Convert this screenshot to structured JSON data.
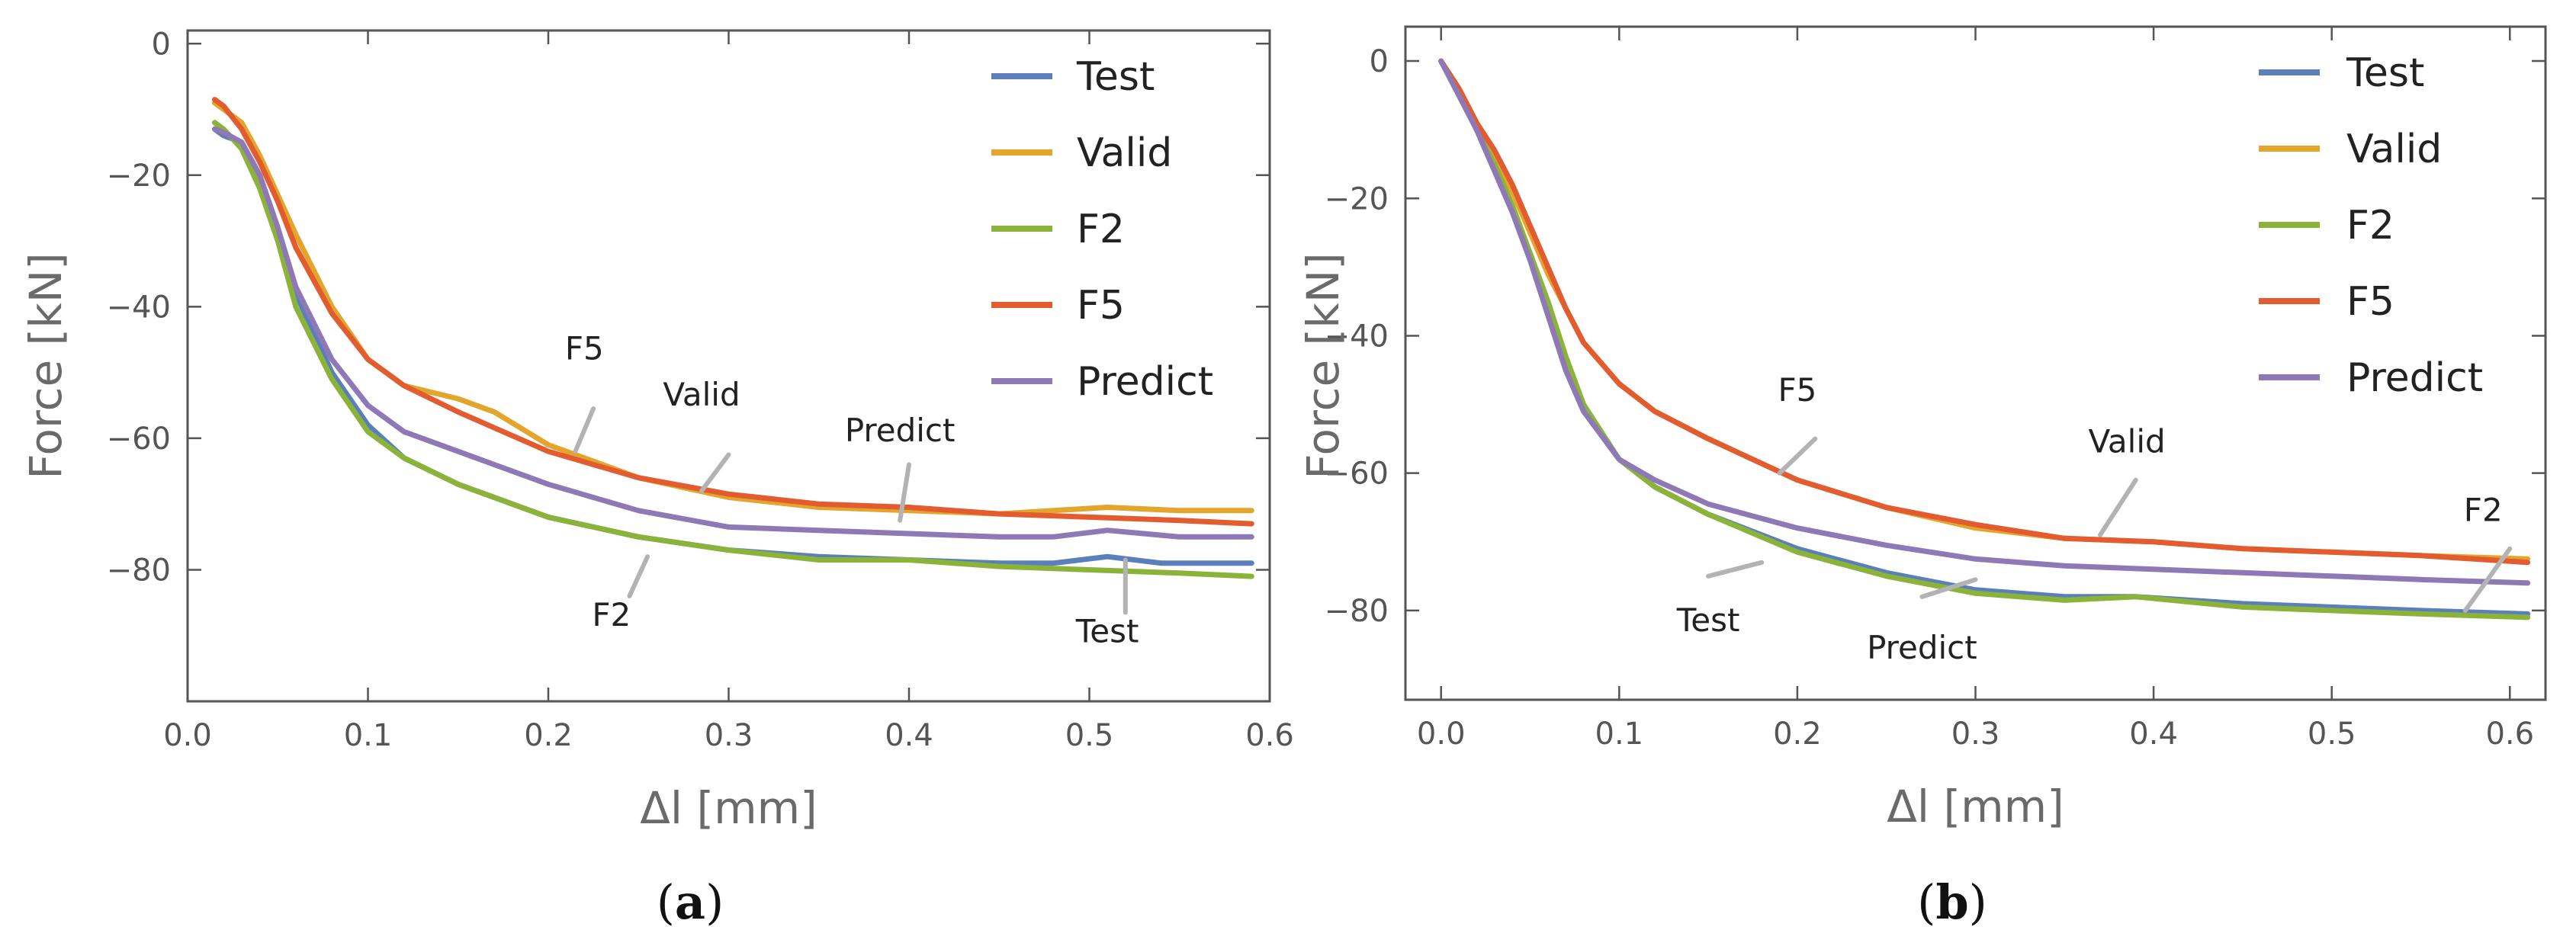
{
  "colors": {
    "Test": "#5b7fbd",
    "Valid": "#e3a52c",
    "F2": "#8bb33a",
    "F5": "#e25c2f",
    "Predict": "#8e79b6"
  },
  "chart_data": [
    {
      "type": "line",
      "panel_label": "(a)",
      "xlabel": "Δl [mm]",
      "ylabel": "Force [kN]",
      "xlim": [
        0,
        0.6
      ],
      "ylim": [
        -100,
        2
      ],
      "xticks": [
        "0.0",
        "0.1",
        "0.2",
        "0.3",
        "0.4",
        "0.5",
        "0.6"
      ],
      "yticks": [
        "0",
        "−20",
        "−40",
        "−60",
        "−80"
      ],
      "legend_position": "top-right",
      "series": [
        {
          "name": "Test",
          "x": [
            0.015,
            0.02,
            0.03,
            0.04,
            0.05,
            0.06,
            0.08,
            0.1,
            0.12,
            0.15,
            0.2,
            0.25,
            0.3,
            0.35,
            0.4,
            0.45,
            0.48,
            0.51,
            0.54,
            0.59
          ],
          "y": [
            -13,
            -14,
            -15,
            -20,
            -28,
            -38,
            -50,
            -58,
            -63,
            -67,
            -72,
            -75,
            -77,
            -78,
            -78.5,
            -79,
            -79,
            -78,
            -79,
            -79
          ]
        },
        {
          "name": "Valid",
          "x": [
            0.015,
            0.02,
            0.03,
            0.04,
            0.05,
            0.06,
            0.08,
            0.1,
            0.12,
            0.15,
            0.17,
            0.2,
            0.25,
            0.3,
            0.35,
            0.4,
            0.45,
            0.51,
            0.55,
            0.59
          ],
          "y": [
            -9,
            -10,
            -12,
            -17,
            -23,
            -29,
            -40,
            -48,
            -52,
            -54,
            -56,
            -61,
            -66,
            -69,
            -70.5,
            -71,
            -71.5,
            -70.5,
            -71,
            -71
          ]
        },
        {
          "name": "F2",
          "x": [
            0.015,
            0.02,
            0.03,
            0.04,
            0.05,
            0.06,
            0.08,
            0.1,
            0.12,
            0.15,
            0.2,
            0.25,
            0.3,
            0.35,
            0.4,
            0.45,
            0.5,
            0.55,
            0.59
          ],
          "y": [
            -12,
            -13,
            -16,
            -22,
            -30,
            -40,
            -51,
            -59,
            -63,
            -67,
            -72,
            -75,
            -77,
            -78.5,
            -78.5,
            -79.5,
            -80,
            -80.5,
            -81
          ]
        },
        {
          "name": "F5",
          "x": [
            0.015,
            0.02,
            0.03,
            0.04,
            0.05,
            0.06,
            0.08,
            0.1,
            0.12,
            0.15,
            0.2,
            0.25,
            0.3,
            0.35,
            0.4,
            0.45,
            0.5,
            0.55,
            0.59
          ],
          "y": [
            -8.5,
            -9.5,
            -13,
            -18,
            -24,
            -31,
            -41,
            -48,
            -52,
            -56,
            -62,
            -66,
            -68.5,
            -70,
            -70.5,
            -71.5,
            -72,
            -72.5,
            -73
          ]
        },
        {
          "name": "Predict",
          "x": [
            0.015,
            0.02,
            0.03,
            0.04,
            0.05,
            0.06,
            0.08,
            0.1,
            0.12,
            0.15,
            0.2,
            0.25,
            0.3,
            0.35,
            0.4,
            0.45,
            0.48,
            0.51,
            0.55,
            0.59
          ],
          "y": [
            -13,
            -13.5,
            -15,
            -20,
            -28,
            -37,
            -48,
            -55,
            -59,
            -62,
            -67,
            -71,
            -73.5,
            -74,
            -74.5,
            -75,
            -75,
            -74,
            -75,
            -75
          ]
        }
      ],
      "annotations": [
        {
          "text": "F5",
          "x": 0.22,
          "y": -48
        },
        {
          "text": "Valid",
          "x": 0.285,
          "y": -55
        },
        {
          "text": "Predict",
          "x": 0.395,
          "y": -60.5
        },
        {
          "text": "F2",
          "x": 0.235,
          "y": -88.5
        },
        {
          "text": "Test",
          "x": 0.51,
          "y": -91
        }
      ]
    },
    {
      "type": "line",
      "panel_label": "(b)",
      "xlabel": "Δl [mm]",
      "ylabel": "Force [kN]",
      "xlim": [
        -0.02,
        0.62
      ],
      "ylim": [
        -93,
        5
      ],
      "xticks": [
        "0.0",
        "0.1",
        "0.2",
        "0.3",
        "0.4",
        "0.5",
        "0.6"
      ],
      "yticks": [
        "0",
        "−20",
        "−40",
        "−60",
        "−80"
      ],
      "legend_position": "top-right",
      "series": [
        {
          "name": "Test",
          "x": [
            0.0,
            0.01,
            0.02,
            0.03,
            0.04,
            0.05,
            0.06,
            0.07,
            0.08,
            0.1,
            0.12,
            0.15,
            0.2,
            0.25,
            0.3,
            0.35,
            0.39,
            0.45,
            0.5,
            0.55,
            0.61
          ],
          "y": [
            0,
            -5,
            -10,
            -16,
            -22,
            -29,
            -37,
            -45,
            -51,
            -58,
            -62,
            -66,
            -71,
            -74.5,
            -77,
            -78,
            -78,
            -79,
            -79.5,
            -80,
            -80.5
          ]
        },
        {
          "name": "Valid",
          "x": [
            0.0,
            0.01,
            0.02,
            0.03,
            0.04,
            0.05,
            0.06,
            0.07,
            0.08,
            0.1,
            0.12,
            0.15,
            0.2,
            0.25,
            0.3,
            0.35,
            0.4,
            0.45,
            0.5,
            0.55,
            0.61
          ],
          "y": [
            0,
            -4,
            -9,
            -14,
            -19,
            -25,
            -31,
            -36,
            -41,
            -47,
            -51,
            -55,
            -61,
            -65,
            -68,
            -69.5,
            -70,
            -71,
            -71.5,
            -72,
            -72.5
          ]
        },
        {
          "name": "F2",
          "x": [
            0.0,
            0.01,
            0.02,
            0.03,
            0.04,
            0.05,
            0.06,
            0.07,
            0.08,
            0.1,
            0.12,
            0.15,
            0.2,
            0.25,
            0.3,
            0.35,
            0.39,
            0.45,
            0.5,
            0.55,
            0.61
          ],
          "y": [
            0,
            -5,
            -10,
            -15,
            -21,
            -28,
            -35,
            -43,
            -50,
            -58,
            -62,
            -66,
            -71.5,
            -75,
            -77.5,
            -78.5,
            -78,
            -79.5,
            -80,
            -80.5,
            -81
          ]
        },
        {
          "name": "F5",
          "x": [
            0.0,
            0.01,
            0.02,
            0.03,
            0.04,
            0.05,
            0.06,
            0.07,
            0.08,
            0.1,
            0.12,
            0.15,
            0.2,
            0.25,
            0.3,
            0.35,
            0.4,
            0.45,
            0.5,
            0.55,
            0.61
          ],
          "y": [
            0,
            -4,
            -9,
            -13,
            -18,
            -24,
            -30,
            -36,
            -41,
            -47,
            -51,
            -55,
            -61,
            -65,
            -67.5,
            -69.5,
            -70,
            -71,
            -71.5,
            -72,
            -73
          ]
        },
        {
          "name": "Predict",
          "x": [
            0.0,
            0.01,
            0.02,
            0.03,
            0.04,
            0.05,
            0.06,
            0.07,
            0.08,
            0.1,
            0.12,
            0.15,
            0.2,
            0.25,
            0.3,
            0.35,
            0.4,
            0.45,
            0.5,
            0.55,
            0.61
          ],
          "y": [
            0,
            -5,
            -10,
            -16,
            -22,
            -29,
            -37,
            -45,
            -51,
            -58,
            -61,
            -64.5,
            -68,
            -70.5,
            -72.5,
            -73.5,
            -74,
            -74.5,
            -75,
            -75.5,
            -76
          ]
        }
      ],
      "annotations": [
        {
          "text": "F5",
          "x": 0.2,
          "y": -49.5
        },
        {
          "text": "Valid",
          "x": 0.385,
          "y": -57
        },
        {
          "text": "Test",
          "x": 0.15,
          "y": -83
        },
        {
          "text": "Predict",
          "x": 0.27,
          "y": -87
        },
        {
          "text": "F2",
          "x": 0.585,
          "y": -67
        }
      ]
    }
  ]
}
